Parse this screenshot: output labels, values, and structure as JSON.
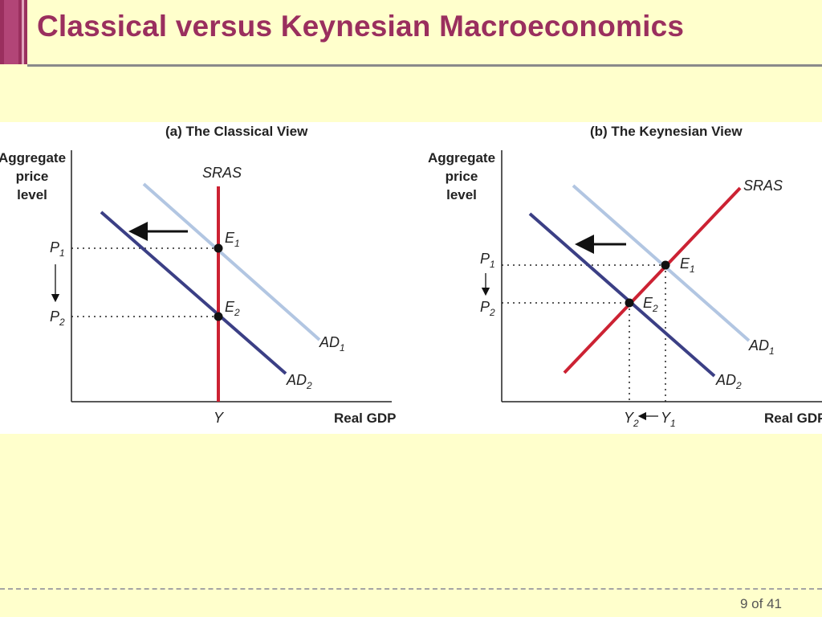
{
  "slide": {
    "title": "Classical versus Keynesian Macroeconomics",
    "page_number": "9 of 41"
  },
  "colors": {
    "title": "#9a2f5e",
    "ad1": "#b2c6e2",
    "ad2": "#3b3f85",
    "sras": "#cc2233",
    "background": "#ffffcc"
  },
  "panel_a": {
    "title": "(a) The Classical View",
    "y_axis_label": [
      "Aggregate",
      "price",
      "level"
    ],
    "x_axis_label": "Real GDP",
    "curves": {
      "sras": "SRAS",
      "ad1": "AD",
      "ad1_sub": "1",
      "ad2": "AD",
      "ad2_sub": "2"
    },
    "points": {
      "e1": "E",
      "e1_sub": "1",
      "e2": "E",
      "e2_sub": "2"
    },
    "price_labels": {
      "p1": "P",
      "p1_sub": "1",
      "p2": "P",
      "p2_sub": "2"
    },
    "output_label": "Y"
  },
  "panel_b": {
    "title": "(b) The Keynesian View",
    "y_axis_label": [
      "Aggregate",
      "price",
      "level"
    ],
    "x_axis_label": "Real GDP",
    "curves": {
      "sras": "SRAS",
      "ad1": "AD",
      "ad1_sub": "1",
      "ad2": "AD",
      "ad2_sub": "2"
    },
    "points": {
      "e1": "E",
      "e1_sub": "1",
      "e2": "E",
      "e2_sub": "2"
    },
    "price_labels": {
      "p1": "P",
      "p1_sub": "1",
      "p2": "P",
      "p2_sub": "2"
    },
    "output_labels": {
      "y2": "Y",
      "y2_sub": "2",
      "y1": "Y",
      "y1_sub": "1"
    }
  }
}
